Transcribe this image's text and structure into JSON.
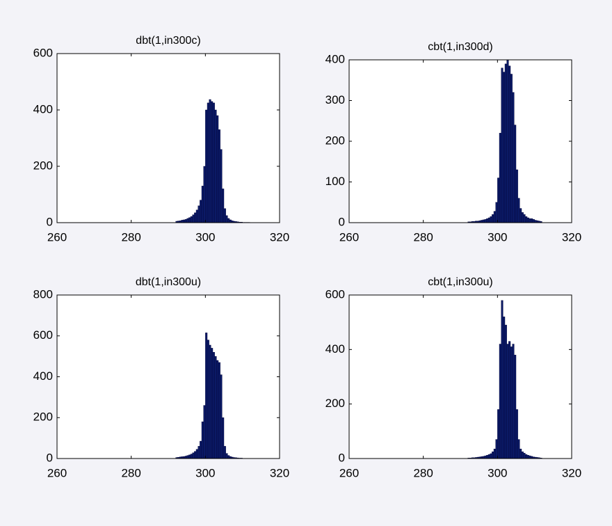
{
  "chart_data": [
    {
      "type": "histogram",
      "title": "dbt(1,in300c)",
      "bins": [
        292,
        292.5,
        293,
        293.5,
        294,
        294.5,
        295,
        295.5,
        296,
        296.5,
        297,
        297.5,
        298,
        298.5,
        299,
        299.5,
        300,
        300.5,
        301,
        301.5,
        302,
        302.5,
        303,
        303.5,
        304,
        304.5,
        305,
        305.5,
        306,
        306.5,
        307,
        307.5,
        308,
        308.5,
        309,
        309.5,
        310,
        310.5,
        311,
        311.5,
        312
      ],
      "counts": [
        5,
        6,
        7,
        9,
        10,
        12,
        15,
        18,
        22,
        28,
        35,
        45,
        60,
        80,
        130,
        200,
        400,
        425,
        437,
        430,
        425,
        400,
        380,
        330,
        260,
        120,
        50,
        25,
        15,
        10,
        7,
        5,
        4,
        3,
        2,
        2,
        1,
        1,
        1,
        1
      ],
      "color": "#0b1a66",
      "xlim": [
        260,
        320
      ],
      "ylim": [
        0,
        600
      ],
      "xticks": [
        260,
        280,
        300,
        320
      ],
      "yticks": [
        0,
        200,
        400,
        600
      ]
    },
    {
      "type": "histogram",
      "title": "cbt(1,in300d)",
      "bins": [
        292,
        292.5,
        293,
        293.5,
        294,
        294.5,
        295,
        295.5,
        296,
        296.5,
        297,
        297.5,
        298,
        298.5,
        299,
        299.5,
        300,
        300.5,
        301,
        301.5,
        302,
        302.5,
        303,
        303.5,
        304,
        304.5,
        305,
        305.5,
        306,
        306.5,
        307,
        307.5,
        308,
        308.5,
        309,
        309.5,
        310,
        310.5,
        311,
        311.5,
        312
      ],
      "counts": [
        2,
        2,
        3,
        3,
        4,
        4,
        5,
        6,
        7,
        8,
        10,
        12,
        15,
        20,
        28,
        50,
        110,
        220,
        380,
        370,
        390,
        400,
        385,
        365,
        320,
        240,
        130,
        60,
        35,
        25,
        20,
        15,
        12,
        10,
        10,
        8,
        6,
        5,
        4,
        3
      ],
      "color": "#0b1a66",
      "xlim": [
        260,
        320
      ],
      "ylim": [
        0,
        400
      ],
      "xticks": [
        260,
        280,
        300,
        320
      ],
      "yticks": [
        0,
        100,
        200,
        300,
        400
      ]
    },
    {
      "type": "histogram",
      "title": "dbt(1,in300u)",
      "bins": [
        292,
        292.5,
        293,
        293.5,
        294,
        294.5,
        295,
        295.5,
        296,
        296.5,
        297,
        297.5,
        298,
        298.5,
        299,
        299.5,
        300,
        300.5,
        301,
        301.5,
        302,
        302.5,
        303,
        303.5,
        304,
        304.5,
        305,
        305.5,
        306,
        306.5,
        307,
        307.5,
        308,
        308.5,
        309,
        309.5,
        310,
        310.5,
        311,
        311.5,
        312
      ],
      "counts": [
        5,
        6,
        8,
        9,
        10,
        12,
        15,
        18,
        22,
        28,
        35,
        45,
        60,
        85,
        180,
        260,
        615,
        580,
        555,
        540,
        520,
        500,
        480,
        470,
        410,
        200,
        60,
        25,
        15,
        10,
        7,
        5,
        4,
        3,
        2,
        2,
        1,
        1,
        1,
        1
      ],
      "color": "#0b1a66",
      "xlim": [
        260,
        320
      ],
      "ylim": [
        0,
        800
      ],
      "xticks": [
        260,
        280,
        300,
        320
      ],
      "yticks": [
        0,
        200,
        400,
        600,
        800
      ]
    },
    {
      "type": "histogram",
      "title": "cbt(1,in300u)",
      "bins": [
        292,
        292.5,
        293,
        293.5,
        294,
        294.5,
        295,
        295.5,
        296,
        296.5,
        297,
        297.5,
        298,
        298.5,
        299,
        299.5,
        300,
        300.5,
        301,
        301.5,
        302,
        302.5,
        303,
        303.5,
        304,
        304.5,
        305,
        305.5,
        306,
        306.5,
        307,
        307.5,
        308,
        308.5,
        309,
        309.5,
        310,
        310.5,
        311,
        311.5,
        312
      ],
      "counts": [
        2,
        2,
        3,
        3,
        4,
        5,
        6,
        7,
        8,
        10,
        12,
        15,
        18,
        25,
        35,
        70,
        180,
        420,
        580,
        520,
        490,
        420,
        430,
        410,
        420,
        380,
        180,
        70,
        35,
        25,
        20,
        15,
        12,
        10,
        8,
        6,
        5,
        4,
        3,
        2
      ],
      "color": "#0b1a66",
      "xlim": [
        260,
        320
      ],
      "ylim": [
        0,
        600
      ],
      "xticks": [
        260,
        280,
        300,
        320
      ],
      "yticks": [
        0,
        200,
        400,
        600
      ]
    }
  ]
}
